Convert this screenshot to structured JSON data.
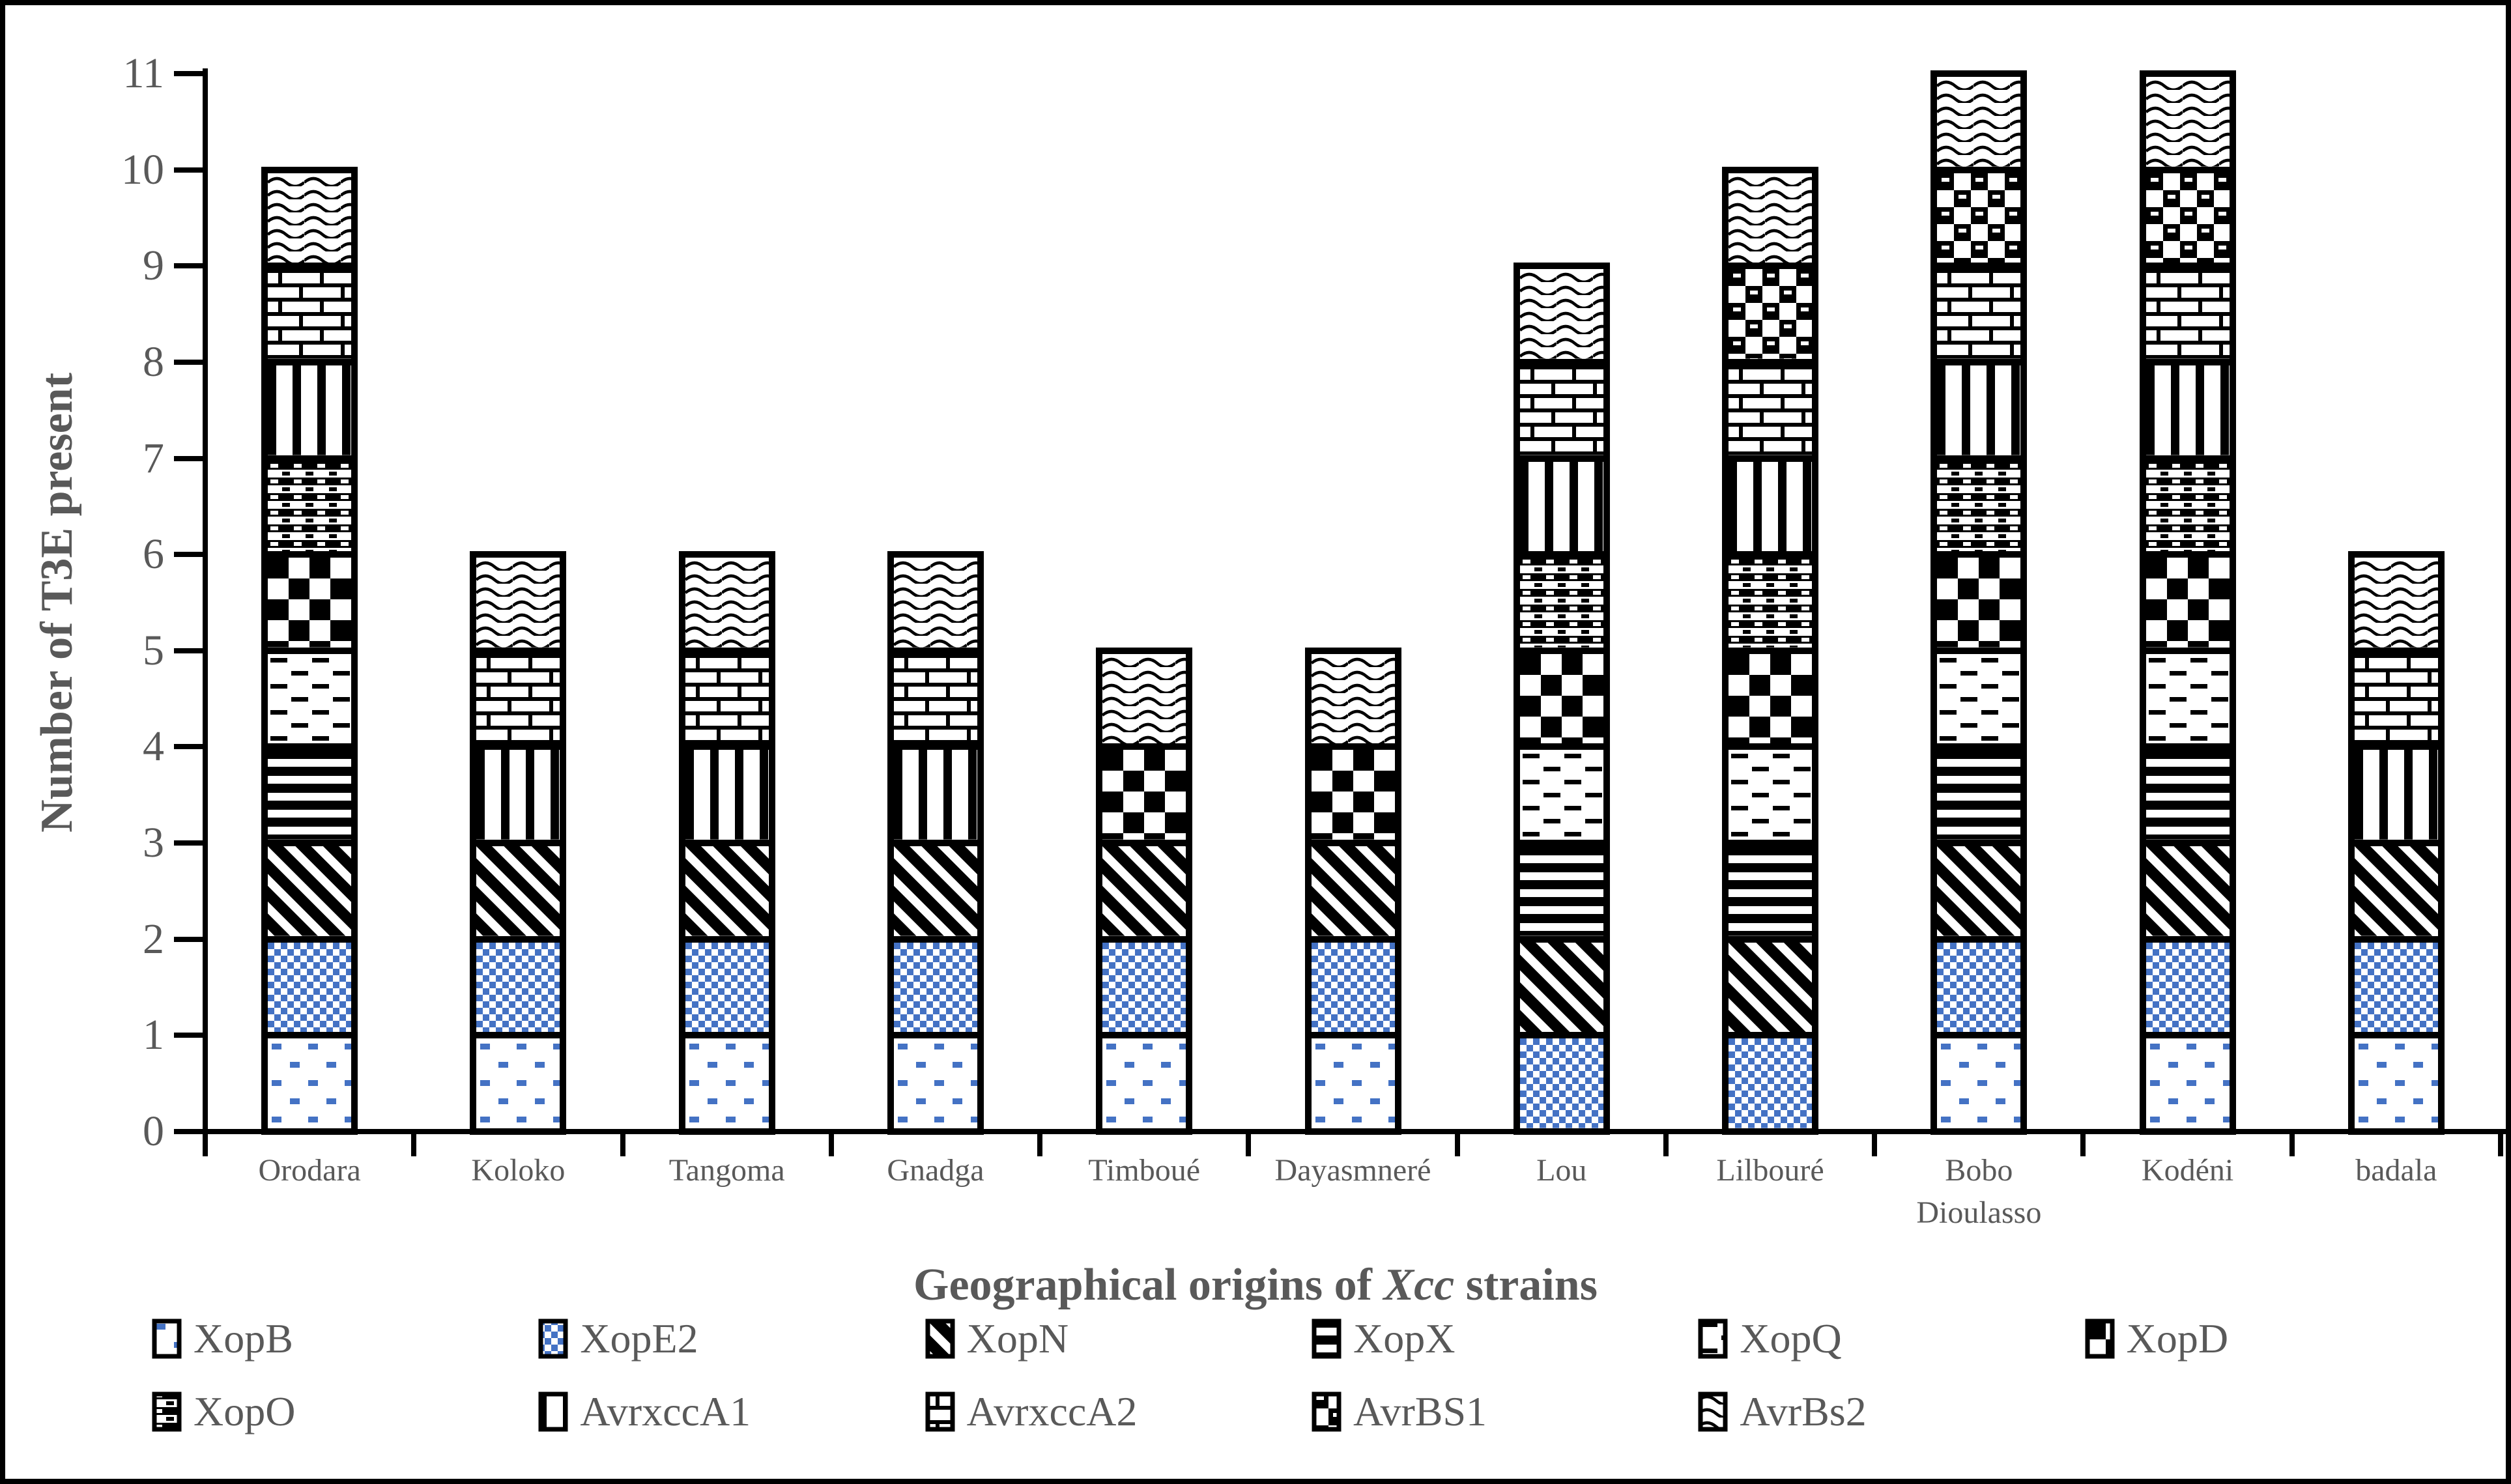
{
  "colors": {
    "accent_blue": "#4472C4",
    "text_gray": "#595959",
    "axis_black": "#000000"
  },
  "y_axis": {
    "label": "Number of T3E present",
    "min": 0,
    "max": 11,
    "tick_step": 1,
    "ticks": [
      "0",
      "1",
      "2",
      "3",
      "4",
      "5",
      "6",
      "7",
      "8",
      "9",
      "10",
      "11"
    ]
  },
  "x_axis": {
    "title_prefix": "Geographical origins of ",
    "title_italic": "Xcc",
    "title_suffix": " strains"
  },
  "legend": {
    "items": [
      {
        "label": "XopB",
        "pattern": "xopb"
      },
      {
        "label": "XopE2",
        "pattern": "xope2"
      },
      {
        "label": "XopN",
        "pattern": "xopn"
      },
      {
        "label": "XopX",
        "pattern": "xopx"
      },
      {
        "label": "XopQ",
        "pattern": "xopq"
      },
      {
        "label": "XopD",
        "pattern": "xopd"
      },
      {
        "label": "XopO",
        "pattern": "xopo"
      },
      {
        "label": "AvrxccA1",
        "pattern": "avrxcca1"
      },
      {
        "label": "AvrxccA2",
        "pattern": "avrxcca2"
      },
      {
        "label": "AvrBS1",
        "pattern": "avrbs1"
      },
      {
        "label": "AvrBs2",
        "pattern": "avrbs2"
      }
    ]
  },
  "chart_data": {
    "type": "bar",
    "stacked": true,
    "title": "",
    "xlabel": "Geographical origins of Xcc strains",
    "ylabel": "Number of T3E present",
    "ylim": [
      0,
      11
    ],
    "grid": false,
    "legend_position": "bottom",
    "categories": [
      "Orodara",
      "Koloko",
      "Tangoma",
      "Gnadga",
      "Timboué",
      "Dayasmneré",
      "Lou",
      "Lilbouré",
      "Bobo\nDioulasso",
      "Kodéni",
      "badala"
    ],
    "unit_per_segment": 1,
    "stack_order": "bottom-to-top follows legend order",
    "series": [
      {
        "name": "XopB",
        "pattern": "xopb",
        "values": [
          1,
          1,
          1,
          1,
          1,
          1,
          0,
          0,
          1,
          1,
          1
        ]
      },
      {
        "name": "XopE2",
        "pattern": "xope2",
        "values": [
          1,
          1,
          1,
          1,
          1,
          1,
          1,
          1,
          1,
          1,
          1
        ]
      },
      {
        "name": "XopN",
        "pattern": "xopn",
        "values": [
          1,
          1,
          1,
          1,
          1,
          1,
          1,
          1,
          1,
          1,
          1
        ]
      },
      {
        "name": "XopX",
        "pattern": "xopx",
        "values": [
          1,
          0,
          0,
          0,
          0,
          0,
          1,
          1,
          1,
          1,
          0
        ]
      },
      {
        "name": "XopQ",
        "pattern": "xopq",
        "values": [
          1,
          0,
          0,
          0,
          0,
          0,
          1,
          1,
          1,
          1,
          0
        ]
      },
      {
        "name": "XopD",
        "pattern": "xopd",
        "values": [
          1,
          0,
          0,
          0,
          1,
          1,
          1,
          1,
          1,
          1,
          0
        ]
      },
      {
        "name": "XopO",
        "pattern": "xopo",
        "values": [
          1,
          0,
          0,
          0,
          0,
          0,
          1,
          1,
          1,
          1,
          0
        ]
      },
      {
        "name": "AvrxccA1",
        "pattern": "avrxcca1",
        "values": [
          1,
          1,
          1,
          1,
          0,
          0,
          1,
          1,
          1,
          1,
          1
        ]
      },
      {
        "name": "AvrxccA2",
        "pattern": "avrxcca2",
        "values": [
          1,
          1,
          1,
          1,
          0,
          0,
          1,
          1,
          1,
          1,
          1
        ]
      },
      {
        "name": "AvrBS1",
        "pattern": "avrbs1",
        "values": [
          0,
          0,
          0,
          0,
          0,
          0,
          0,
          1,
          1,
          1,
          0
        ]
      },
      {
        "name": "AvrBs2",
        "pattern": "avrbs2",
        "values": [
          1,
          1,
          1,
          1,
          1,
          1,
          1,
          1,
          1,
          1,
          1
        ]
      }
    ],
    "totals": [
      10,
      6,
      6,
      6,
      5,
      5,
      9,
      10,
      11,
      11,
      6
    ]
  }
}
